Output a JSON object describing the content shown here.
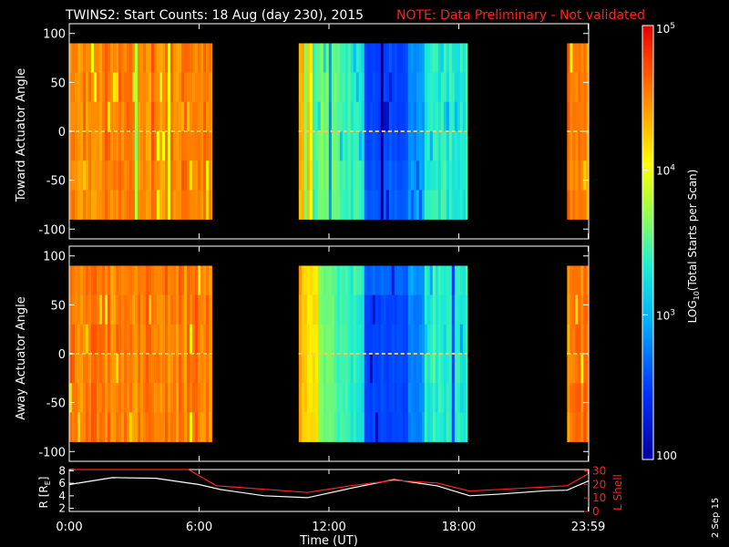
{
  "title": {
    "main": "TWINS2: Start Counts: 18 Aug (day 230), 2015",
    "note": "NOTE: Data Preliminary - Not validated"
  },
  "colors": {
    "background": "#000000",
    "axes": "#ffffff",
    "note": "#ff2020",
    "lshell": "#ff2020",
    "r_line": "#ffffff"
  },
  "side_date": "2 Sep 15",
  "chart_data": [
    {
      "type": "heatmap",
      "name": "top-panel",
      "ylabel": "Toward Actuator Angle",
      "yticks": [
        "100",
        "50",
        "0",
        "-50",
        "-100"
      ],
      "yrange": [
        -110,
        110
      ],
      "xrange_hours": [
        0,
        24
      ],
      "data_blocks_hours": [
        [
          0.0,
          6.6
        ],
        [
          10.6,
          18.4
        ],
        [
          23.0,
          24.0
        ]
      ],
      "angle_range": [
        -90,
        90
      ]
    },
    {
      "type": "heatmap",
      "name": "bottom-panel",
      "ylabel": "Away Actuator Angle",
      "yticks": [
        "100",
        "50",
        "0",
        "-50",
        "-100"
      ],
      "yrange": [
        -110,
        110
      ],
      "xrange_hours": [
        0,
        24
      ],
      "data_blocks_hours": [
        [
          0.0,
          6.6
        ],
        [
          10.6,
          18.4
        ],
        [
          23.0,
          24.0
        ]
      ],
      "angle_range": [
        -90,
        90
      ]
    },
    {
      "type": "line",
      "name": "orbit-panel",
      "ylabel_left_parts": [
        "R [R",
        "E",
        "]"
      ],
      "ylabel_right": "L Shell",
      "yticks_left": [
        "2",
        "4",
        "6",
        "8"
      ],
      "yticks_right": [
        "0",
        "10",
        "20",
        "30"
      ],
      "ylim_left": [
        1.5,
        8.2
      ],
      "ylim_right": [
        0,
        31
      ],
      "xticks": [
        "0:00",
        "6:00",
        "12:00",
        "18:00",
        "23:59"
      ],
      "xtick_hours": [
        0,
        6,
        12,
        18,
        23.98
      ],
      "xlabel": "Time (UT)",
      "series": [
        {
          "name": "R",
          "x": [
            0,
            2,
            4,
            6,
            7,
            9,
            11,
            13,
            15,
            17,
            18.5,
            20,
            22,
            23,
            24
          ],
          "y": [
            5.8,
            6.9,
            6.8,
            5.8,
            5.0,
            4.0,
            3.7,
            5.2,
            6.6,
            5.6,
            4.0,
            4.3,
            4.8,
            4.9,
            6.4
          ]
        },
        {
          "name": "L Shell",
          "x": [
            0,
            0.3,
            5.5,
            6.8,
            11,
            13,
            15,
            17,
            18.5,
            23,
            24
          ],
          "y": [
            30,
            31,
            31,
            19,
            14,
            19,
            23,
            21,
            15,
            19,
            28
          ]
        }
      ]
    },
    {
      "type": "heatmap",
      "name": "colorbar",
      "label": "LOG10(Total Starts per Scan)",
      "label_parts": [
        "LOG",
        "10",
        "(Total Starts per Scan)"
      ],
      "ticks": [
        "100",
        "10^3",
        "10^4",
        "10^5"
      ],
      "tick_labels": [
        {
          "base": "100",
          "exp": ""
        },
        {
          "base": "10",
          "exp": "3"
        },
        {
          "base": "10",
          "exp": "4"
        },
        {
          "base": "10",
          "exp": "5"
        }
      ],
      "log_range": [
        2,
        5
      ]
    }
  ]
}
